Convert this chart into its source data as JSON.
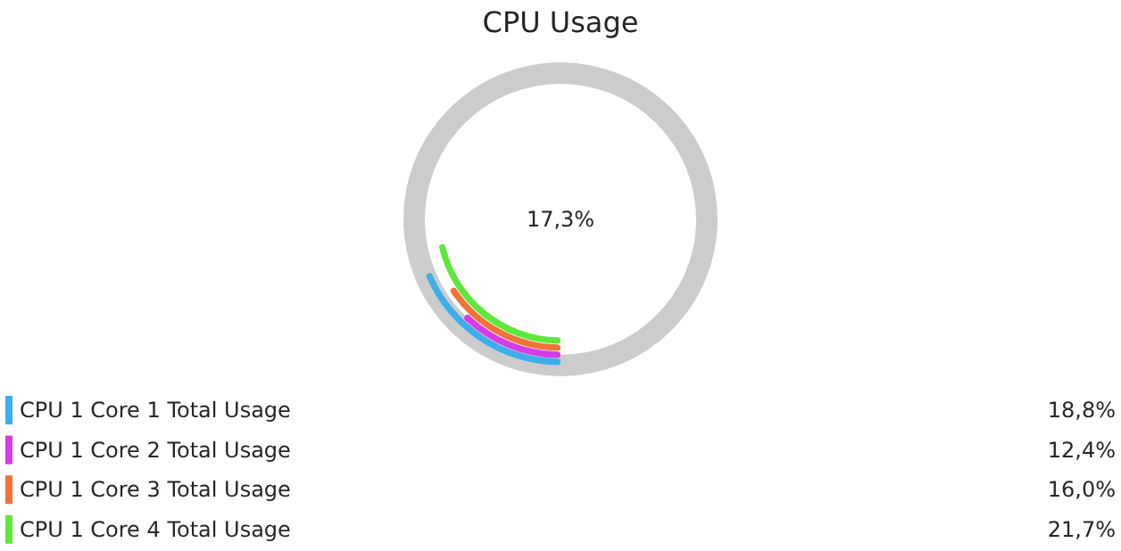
{
  "chart_data": {
    "type": "other",
    "title": "CPU Usage",
    "categories": [
      "CPU 1 Core 1 Total Usage",
      "CPU 1 Core 2 Total Usage",
      "CPU 1 Core 3 Total Usage",
      "CPU 1 Core 4 Total Usage"
    ],
    "values": [
      18.8,
      12.4,
      16.0,
      21.7
    ],
    "colors": [
      "#3daee9",
      "#d63be8",
      "#ef7339",
      "#5de83b"
    ],
    "value_labels": [
      "18,8%",
      "12,4%",
      "16,0%",
      "21,7%"
    ],
    "annotations": [
      "17,3%"
    ]
  }
}
